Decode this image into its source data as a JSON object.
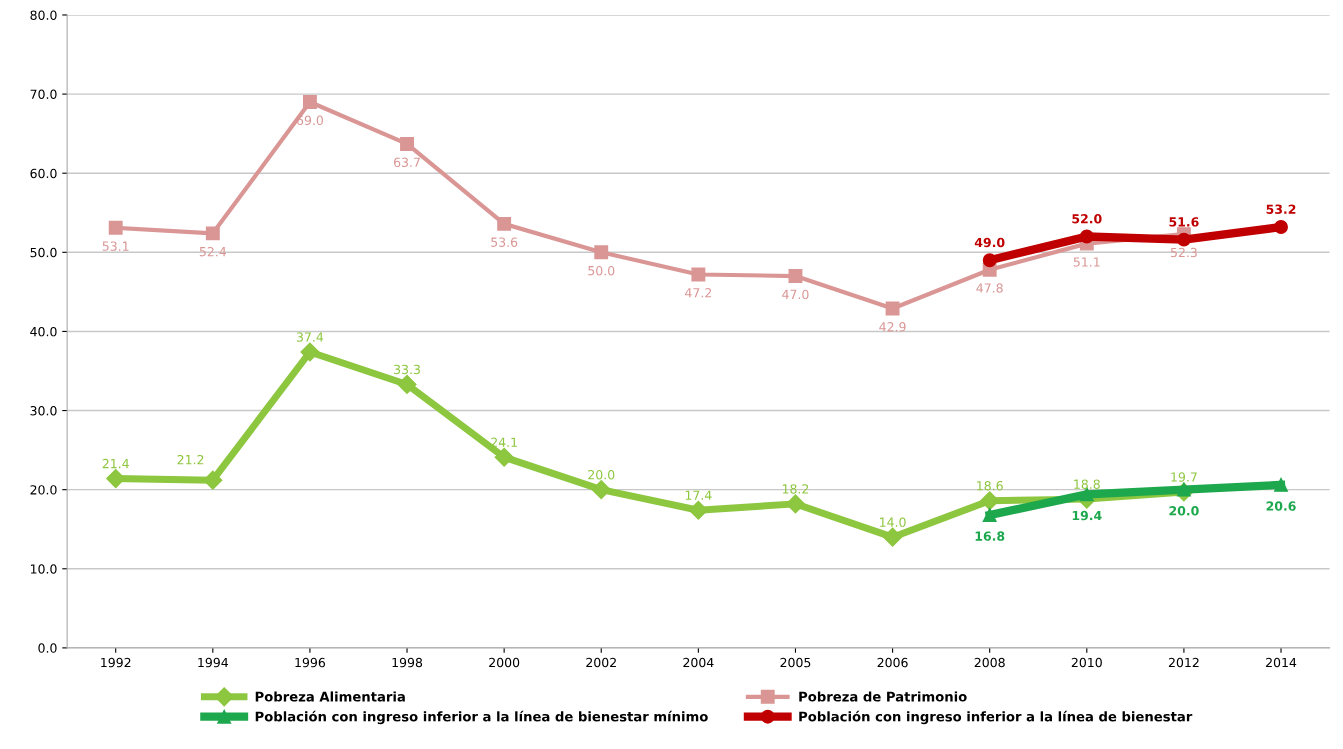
{
  "chart_data": {
    "type": "line",
    "categories": [
      "1992",
      "1994",
      "1996",
      "1998",
      "2000",
      "2002",
      "2004",
      "2005",
      "2006",
      "2008",
      "2010",
      "2012",
      "2014"
    ],
    "series": [
      {
        "name": "Pobreza Alimentaria",
        "color": "#8dc63f",
        "marker": "diamond",
        "values": [
          21.4,
          21.2,
          37.4,
          33.3,
          24.1,
          20.0,
          17.4,
          18.2,
          14.0,
          18.6,
          18.8,
          19.7,
          null
        ],
        "value_labels": [
          "21.4",
          "21.2",
          "37.4",
          "33.3",
          "24.1",
          "20.0",
          "17.4",
          "18.2",
          "14.0",
          "18.6",
          "18.8",
          "19.7",
          null
        ]
      },
      {
        "name": "Pobreza de Patrimonio",
        "color": "#d99694",
        "marker": "square",
        "values": [
          53.1,
          52.4,
          69.0,
          63.7,
          53.6,
          50.0,
          47.2,
          47.0,
          42.9,
          47.8,
          51.1,
          52.3,
          null
        ],
        "value_labels": [
          "53.1",
          "52.4",
          "69.0",
          "63.7",
          "53.6",
          "50.0",
          "47.2",
          "47.0",
          "42.9",
          "47.8",
          "51.1",
          "52.3",
          null
        ]
      },
      {
        "name": "Población con ingreso inferior a la línea de bienestar mínimo",
        "color": "#1ea84e",
        "marker": "triangle",
        "values": [
          null,
          null,
          null,
          null,
          null,
          null,
          null,
          null,
          null,
          16.8,
          19.4,
          20.0,
          20.6
        ],
        "value_labels": [
          null,
          null,
          null,
          null,
          null,
          null,
          null,
          null,
          null,
          "16.8",
          "19.4",
          "20.0",
          "20.6"
        ]
      },
      {
        "name": "Población con ingreso inferior a la línea de bienestar",
        "color": "#c00000",
        "marker": "circle",
        "values": [
          null,
          null,
          null,
          null,
          null,
          null,
          null,
          null,
          null,
          49.0,
          52.0,
          51.6,
          53.2
        ],
        "value_labels": [
          null,
          null,
          null,
          null,
          null,
          null,
          null,
          null,
          null,
          "49.0",
          "52.0",
          "51.6",
          "53.2"
        ]
      }
    ],
    "ylim": [
      0,
      80
    ],
    "yticks": [
      {
        "value": 0,
        "label": "0.0"
      },
      {
        "value": 10,
        "label": "10.0"
      },
      {
        "value": 20,
        "label": "20.0"
      },
      {
        "value": 30,
        "label": "30.0"
      },
      {
        "value": 40,
        "label": "40.0"
      },
      {
        "value": 50,
        "label": "50.0"
      },
      {
        "value": 60,
        "label": "60.0"
      },
      {
        "value": 70,
        "label": "70.0"
      },
      {
        "value": 80,
        "label": "80.0"
      }
    ],
    "grid": "y",
    "legend": "bottom",
    "line_style": "solid"
  }
}
